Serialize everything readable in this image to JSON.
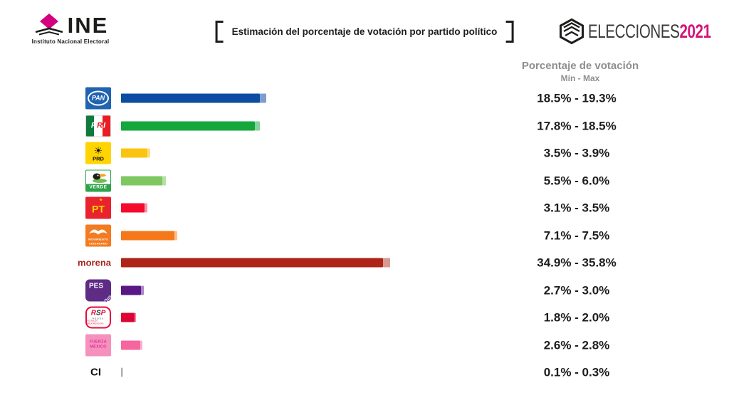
{
  "header": {
    "ine": {
      "title": "INE",
      "subtitle": "Instituto Nacional Electoral",
      "diamond_color": "#D5007F"
    },
    "title": "Estimación del porcentaje de votación por partido político",
    "elecciones": {
      "text": "ELECCIONES",
      "year": "2021",
      "year_color": "#D3147A"
    }
  },
  "chart_data": {
    "type": "bar",
    "orientation": "horizontal",
    "title": "Estimación del porcentaje de votación por partido político",
    "value_header": "Porcentaje de votación",
    "value_subheader": "Mín - Max",
    "unit": "%",
    "xlim": [
      0,
      40
    ],
    "grid": false,
    "legend": "solid segment = Mín, light tip segment = Max",
    "parties": [
      {
        "id": "pan",
        "name": "PAN",
        "min": 18.5,
        "max": 19.3,
        "range_label": "18.5% - 19.3%",
        "bar_color": "#0D4DA1",
        "tip_color": "#7F9DCB",
        "logo": {
          "text": "PAN",
          "bg": "#2063B0"
        }
      },
      {
        "id": "pri",
        "name": "PRI",
        "min": 17.8,
        "max": 18.5,
        "range_label": "17.8% - 18.5%",
        "bar_color": "#14A73C",
        "tip_color": "#84D29C",
        "logo": {
          "text": "PRI",
          "stripes": [
            "#0E7A3C",
            "#FFFFFF",
            "#EA1D25"
          ]
        }
      },
      {
        "id": "prd",
        "name": "PRD",
        "min": 3.5,
        "max": 3.9,
        "range_label": "3.5% - 3.9%",
        "bar_color": "#FBC410",
        "tip_color": "#FDDF82",
        "logo": {
          "text": "PRD",
          "sun": "☀",
          "bg": "#FFD400"
        }
      },
      {
        "id": "verde",
        "name": "VERDE",
        "min": 5.5,
        "max": 6.0,
        "range_label": "5.5% - 6.0%",
        "bar_color": "#7FC861",
        "tip_color": "#B5E0A4",
        "logo": {
          "text": "VERDE",
          "band": "#2FA14B"
        }
      },
      {
        "id": "pt",
        "name": "PT",
        "min": 3.1,
        "max": 3.5,
        "range_label": "3.1% - 3.5%",
        "bar_color": "#F50A2E",
        "tip_color": "#FA93A6",
        "logo": {
          "text": "PT",
          "star": "★",
          "bg": "#E8232E",
          "fg": "#FFD400"
        }
      },
      {
        "id": "mc",
        "name": "Movimiento Ciudadano",
        "min": 7.1,
        "max": 7.5,
        "range_label": "7.1% - 7.5%",
        "bar_color": "#F5791A",
        "tip_color": "#FBBE8C",
        "logo": {
          "line1": "MOVIMIENTO",
          "line2": "CIUDADANO",
          "bg": "#F47B20"
        }
      },
      {
        "id": "morena",
        "name": "morena",
        "min": 34.9,
        "max": 35.8,
        "range_label": "34.9% - 35.8%",
        "bar_color": "#AE2418",
        "tip_color": "#D79A92",
        "logo": {
          "text": "morena",
          "fg": "#A3241C"
        }
      },
      {
        "id": "pes",
        "name": "PES",
        "min": 2.7,
        "max": 3.0,
        "range_label": "2.7% - 3.0%",
        "bar_color": "#5A1786",
        "tip_color": "#A985C4",
        "logo": {
          "text": "PES",
          "check": "✓",
          "bg": "#5E2B85"
        }
      },
      {
        "id": "rsp",
        "name": "RSP",
        "min": 1.8,
        "max": 2.0,
        "range_label": "1.8% - 2.0%",
        "bar_color": "#DB0433",
        "tip_color": "#EF87A3",
        "logo": {
          "text": "RSP",
          "sub1": "REDES",
          "sub2": "SOCIALES PROGRESISTAS",
          "accent": "#E40B3B"
        }
      },
      {
        "id": "fxm",
        "name": "Fuerza México",
        "min": 2.6,
        "max": 2.8,
        "range_label": "2.6% - 2.8%",
        "bar_color": "#F7659F",
        "tip_color": "#FBB1CE",
        "logo": {
          "line1": "FUERZA",
          "line2": "MÉXICO",
          "bg": "#F492BD",
          "fg": "#E82B95"
        }
      },
      {
        "id": "ci",
        "name": "CI",
        "min": 0.1,
        "max": 0.3,
        "range_label": "0.1% - 0.3%",
        "bar_color": "#ABABAB",
        "tip_color": "#C9C9C9",
        "logo": {
          "text": "CI"
        }
      }
    ]
  }
}
